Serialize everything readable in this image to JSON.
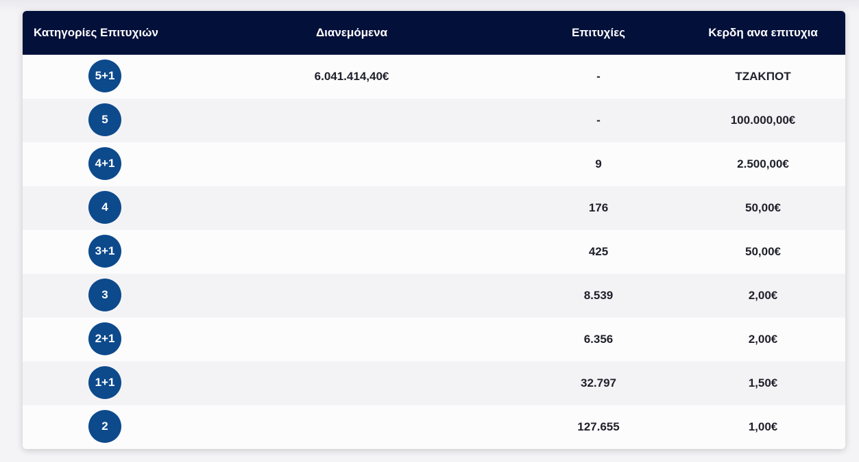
{
  "table": {
    "headers": {
      "category": "Κατηγορίες Επιτυχιών",
      "distributed": "Διανεμόμενα",
      "winners": "Επιτυχίες",
      "prize": "Κερδη ανα επιτυχια"
    },
    "rows": [
      {
        "category": "5+1",
        "distributed": "6.041.414,40€",
        "winners": "-",
        "prize": "ΤΖΑΚΠΟΤ"
      },
      {
        "category": "5",
        "distributed": "",
        "winners": "-",
        "prize": "100.000,00€"
      },
      {
        "category": "4+1",
        "distributed": "",
        "winners": "9",
        "prize": "2.500,00€"
      },
      {
        "category": "4",
        "distributed": "",
        "winners": "176",
        "prize": "50,00€"
      },
      {
        "category": "3+1",
        "distributed": "",
        "winners": "425",
        "prize": "50,00€"
      },
      {
        "category": "3",
        "distributed": "",
        "winners": "8.539",
        "prize": "2,00€"
      },
      {
        "category": "2+1",
        "distributed": "",
        "winners": "6.356",
        "prize": "2,00€"
      },
      {
        "category": "1+1",
        "distributed": "",
        "winners": "32.797",
        "prize": "1,50€"
      },
      {
        "category": "2",
        "distributed": "",
        "winners": "127.655",
        "prize": "1,00€"
      }
    ]
  },
  "colors": {
    "header_bg": "#03103a",
    "badge_bg": "#0d4a8c"
  }
}
